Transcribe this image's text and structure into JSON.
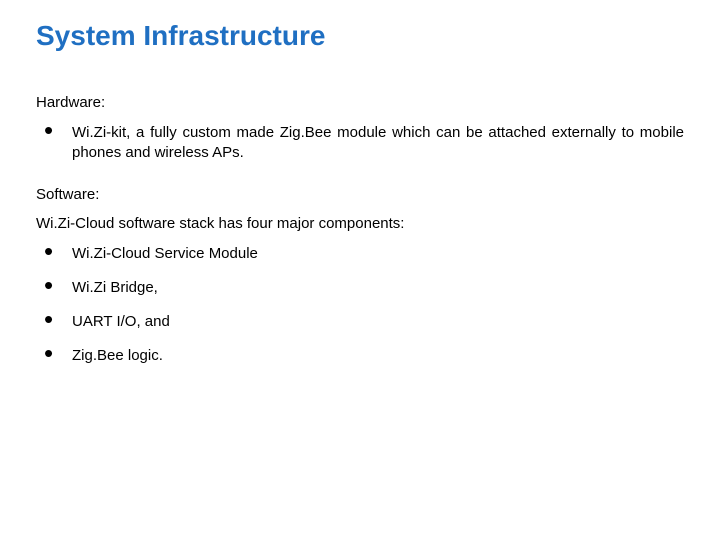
{
  "title": {
    "text": "System Infrastructure",
    "color": "#1f6fc2",
    "fontsize": 28,
    "fontweight": "bold"
  },
  "hardware": {
    "label": "Hardware:",
    "items": [
      {
        "text": "Wi.Zi-kit, a fully custom made Zig.Bee module which can be attached externally to mobile phones and wireless APs."
      }
    ]
  },
  "software": {
    "label": "Software:",
    "intro": "Wi.Zi-Cloud software stack has four major components:",
    "items": [
      {
        "text": "Wi.Zi-Cloud Service Module"
      },
      {
        "text": "Wi.Zi Bridge,"
      },
      {
        "text": "UART I/O, and"
      },
      {
        "text": "Zig.Bee logic."
      }
    ]
  },
  "colors": {
    "background": "#ffffff",
    "body_text": "#000000",
    "bullet": "#000000"
  }
}
